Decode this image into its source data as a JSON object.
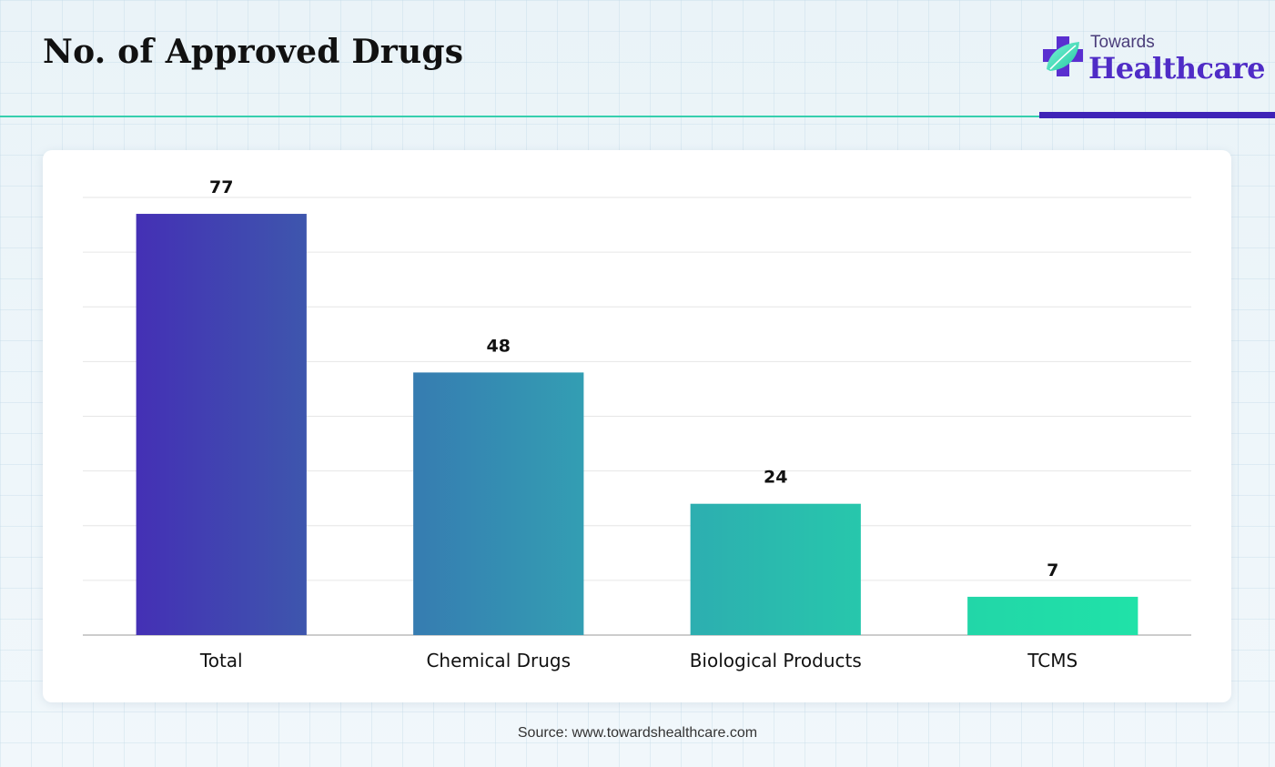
{
  "header": {
    "title": "No. of Approved Drugs"
  },
  "logo": {
    "top_text": "Towards",
    "main_text": "Healthcare"
  },
  "colors": {
    "teal_rule": "#36cfae",
    "purple_rule": "#3f23b7",
    "logo_purple": "#4f2cc6"
  },
  "chart_data": {
    "type": "bar",
    "title": "",
    "xlabel": "",
    "ylabel": "",
    "categories": [
      "Total",
      "Chemical Drugs",
      "Biological Products",
      "TCMS"
    ],
    "values": [
      77,
      48,
      24,
      7
    ],
    "data_labels": [
      "77",
      "48",
      "24",
      "7"
    ],
    "ylim": [
      0,
      80
    ],
    "grid": true,
    "legend": "none",
    "bar_gradients": [
      [
        "#4430b5",
        "#3e56ad"
      ],
      [
        "#367cb1",
        "#339eb3"
      ],
      [
        "#2daeb0",
        "#27c7ac"
      ],
      [
        "#22d6a8",
        "#20e2a8"
      ]
    ]
  },
  "footer": {
    "source": "Source: www.towardshealthcare.com"
  }
}
